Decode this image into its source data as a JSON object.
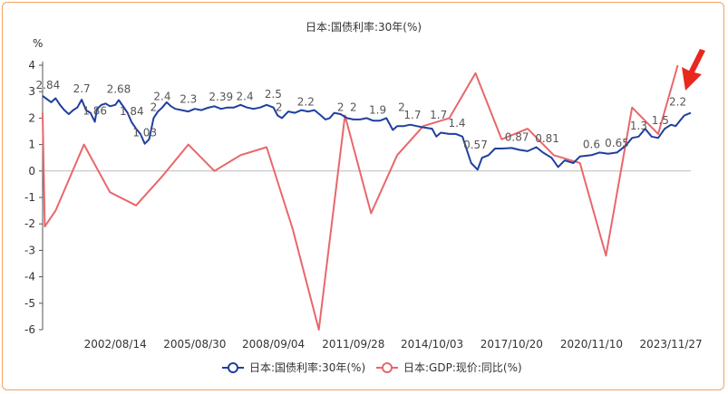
{
  "chart_data": {
    "type": "line",
    "title": "日本:国债利率:30年(%)",
    "ylabel": "%",
    "ylim": [
      -6,
      4
    ],
    "yticks": [
      "4",
      "3",
      "2",
      "1",
      "0",
      "-1",
      "-2",
      "-3",
      "-4",
      "-5",
      "-6"
    ],
    "x_range": [
      "1999-11-01",
      "2024-08-31"
    ],
    "xticks": [
      {
        "label": "2002/08/14",
        "date": "2002-08-14"
      },
      {
        "label": "2005/08/30",
        "date": "2005-08-30"
      },
      {
        "label": "2008/09/04",
        "date": "2008-09-04"
      },
      {
        "label": "2011/09/28",
        "date": "2011-09-28"
      },
      {
        "label": "2014/10/03",
        "date": "2014-10-03"
      },
      {
        "label": "2017/10/20",
        "date": "2017-10-20"
      },
      {
        "label": "2020/11/10",
        "date": "2020-11-10"
      },
      {
        "label": "2023/11/27",
        "date": "2023-11-27"
      }
    ],
    "grid": false,
    "legend_position": "bottom",
    "colors": {
      "bond": "#1f3f9e",
      "gdp": "#e8676b",
      "frame": "#f3a35c",
      "arrow": "#e8281e"
    },
    "series": [
      {
        "name": "日本:国债利率:30年(%)",
        "color": "#1f3f9e",
        "points": [
          [
            "1999-11-01",
            2.84
          ],
          [
            "2000-01-01",
            2.72
          ],
          [
            "2000-03-01",
            2.6
          ],
          [
            "2000-05-01",
            2.75
          ],
          [
            "2000-07-01",
            2.5
          ],
          [
            "2000-09-01",
            2.3
          ],
          [
            "2000-11-01",
            2.15
          ],
          [
            "2001-01-01",
            2.3
          ],
          [
            "2001-03-01",
            2.4
          ],
          [
            "2001-05-01",
            2.7
          ],
          [
            "2001-07-01",
            2.3
          ],
          [
            "2001-09-01",
            2.2
          ],
          [
            "2001-11-01",
            1.86
          ],
          [
            "2001-12-01",
            2.35
          ],
          [
            "2002-02-01",
            2.5
          ],
          [
            "2002-04-01",
            2.55
          ],
          [
            "2002-06-01",
            2.45
          ],
          [
            "2002-08-14",
            2.5
          ],
          [
            "2002-10-01",
            2.68
          ],
          [
            "2002-12-01",
            2.45
          ],
          [
            "2003-02-01",
            2.2
          ],
          [
            "2003-04-01",
            1.84
          ],
          [
            "2003-06-01",
            1.6
          ],
          [
            "2003-08-01",
            1.4
          ],
          [
            "2003-10-01",
            1.03
          ],
          [
            "2003-12-01",
            1.2
          ],
          [
            "2004-02-01",
            2.0
          ],
          [
            "2004-04-01",
            2.25
          ],
          [
            "2004-06-01",
            2.4
          ],
          [
            "2004-08-01",
            2.6
          ],
          [
            "2004-10-01",
            2.45
          ],
          [
            "2004-12-01",
            2.35
          ],
          [
            "2005-03-01",
            2.3
          ],
          [
            "2005-06-01",
            2.25
          ],
          [
            "2005-08-30",
            2.35
          ],
          [
            "2005-12-01",
            2.3
          ],
          [
            "2006-03-01",
            2.39
          ],
          [
            "2006-06-01",
            2.45
          ],
          [
            "2006-09-01",
            2.35
          ],
          [
            "2006-12-01",
            2.4
          ],
          [
            "2007-03-01",
            2.4
          ],
          [
            "2007-06-01",
            2.5
          ],
          [
            "2007-09-01",
            2.4
          ],
          [
            "2007-12-01",
            2.35
          ],
          [
            "2008-03-01",
            2.4
          ],
          [
            "2008-06-01",
            2.5
          ],
          [
            "2008-09-04",
            2.4
          ],
          [
            "2008-11-01",
            2.1
          ],
          [
            "2009-01-01",
            2.0
          ],
          [
            "2009-04-01",
            2.25
          ],
          [
            "2009-07-01",
            2.2
          ],
          [
            "2009-10-01",
            2.3
          ],
          [
            "2010-01-01",
            2.25
          ],
          [
            "2010-04-01",
            2.3
          ],
          [
            "2010-07-01",
            2.1
          ],
          [
            "2010-09-01",
            1.95
          ],
          [
            "2010-11-01",
            2.0
          ],
          [
            "2011-01-01",
            2.2
          ],
          [
            "2011-04-01",
            2.15
          ],
          [
            "2011-07-01",
            2.0
          ],
          [
            "2011-09-28",
            1.95
          ],
          [
            "2012-01-01",
            1.95
          ],
          [
            "2012-04-01",
            2.0
          ],
          [
            "2012-07-01",
            1.9
          ],
          [
            "2012-10-01",
            1.9
          ],
          [
            "2013-01-01",
            2.0
          ],
          [
            "2013-04-01",
            1.55
          ],
          [
            "2013-06-01",
            1.7
          ],
          [
            "2013-09-01",
            1.7
          ],
          [
            "2013-12-01",
            1.75
          ],
          [
            "2014-03-01",
            1.7
          ],
          [
            "2014-06-01",
            1.65
          ],
          [
            "2014-10-03",
            1.6
          ],
          [
            "2014-12-01",
            1.3
          ],
          [
            "2015-02-01",
            1.45
          ],
          [
            "2015-06-01",
            1.4
          ],
          [
            "2015-09-01",
            1.4
          ],
          [
            "2015-12-01",
            1.3
          ],
          [
            "2016-02-01",
            0.8
          ],
          [
            "2016-04-01",
            0.3
          ],
          [
            "2016-07-01",
            0.05
          ],
          [
            "2016-09-01",
            0.5
          ],
          [
            "2016-12-01",
            0.6
          ],
          [
            "2017-03-01",
            0.85
          ],
          [
            "2017-06-01",
            0.85
          ],
          [
            "2017-10-20",
            0.87
          ],
          [
            "2018-02-01",
            0.8
          ],
          [
            "2018-06-01",
            0.75
          ],
          [
            "2018-10-01",
            0.9
          ],
          [
            "2019-01-01",
            0.7
          ],
          [
            "2019-05-01",
            0.5
          ],
          [
            "2019-08-01",
            0.15
          ],
          [
            "2019-11-01",
            0.4
          ],
          [
            "2020-03-01",
            0.3
          ],
          [
            "2020-06-01",
            0.55
          ],
          [
            "2020-11-10",
            0.6
          ],
          [
            "2021-03-01",
            0.7
          ],
          [
            "2021-07-01",
            0.65
          ],
          [
            "2021-11-01",
            0.7
          ],
          [
            "2022-03-01",
            0.95
          ],
          [
            "2022-06-01",
            1.25
          ],
          [
            "2022-09-01",
            1.3
          ],
          [
            "2022-12-01",
            1.6
          ],
          [
            "2023-03-01",
            1.3
          ],
          [
            "2023-06-01",
            1.25
          ],
          [
            "2023-09-01",
            1.6
          ],
          [
            "2023-11-27",
            1.75
          ],
          [
            "2024-02-01",
            1.7
          ],
          [
            "2024-04-01",
            1.9
          ],
          [
            "2024-06-01",
            2.1
          ],
          [
            "2024-08-31",
            2.2
          ]
        ]
      },
      {
        "name": "日本:GDP:现价:同比(%)",
        "color": "#e8676b",
        "points": [
          [
            "1999-11-01",
            2.2
          ],
          [
            "1999-12-01",
            -2.1
          ],
          [
            "2000-05-01",
            -1.5
          ],
          [
            "2001-06-01",
            1.0
          ],
          [
            "2002-06-01",
            -0.8
          ],
          [
            "2003-06-01",
            -1.3
          ],
          [
            "2004-06-01",
            -0.2
          ],
          [
            "2005-06-01",
            1.0
          ],
          [
            "2006-06-01",
            0.0
          ],
          [
            "2007-06-01",
            0.6
          ],
          [
            "2008-06-01",
            0.9
          ],
          [
            "2009-06-01",
            -2.2
          ],
          [
            "2010-06-01",
            -6.0
          ],
          [
            "2011-06-01",
            2.1
          ],
          [
            "2012-06-01",
            -1.6
          ],
          [
            "2013-06-01",
            0.6
          ],
          [
            "2014-06-01",
            1.7
          ],
          [
            "2015-06-01",
            2.0
          ],
          [
            "2016-06-01",
            3.7
          ],
          [
            "2017-06-01",
            1.2
          ],
          [
            "2018-06-01",
            1.6
          ],
          [
            "2019-06-01",
            0.6
          ],
          [
            "2020-06-01",
            0.3
          ],
          [
            "2021-06-01",
            -3.2
          ],
          [
            "2022-06-01",
            2.4
          ],
          [
            "2023-06-01",
            1.4
          ],
          [
            "2024-03-01",
            4.0
          ]
        ]
      }
    ],
    "data_labels": [
      {
        "text": "2.84",
        "date": "2000-01-15",
        "y": 2.84
      },
      {
        "text": "2.7",
        "date": "2001-05-01",
        "y": 2.7
      },
      {
        "text": "1.86",
        "date": "2001-11-01",
        "y": 1.86
      },
      {
        "text": "2.68",
        "date": "2002-10-01",
        "y": 2.68
      },
      {
        "text": "1.84",
        "date": "2003-04-01",
        "y": 1.84
      },
      {
        "text": "1.03",
        "date": "2003-10-01",
        "y": 1.03
      },
      {
        "text": "2",
        "date": "2004-02-01",
        "y": 2.0
      },
      {
        "text": "2.4",
        "date": "2004-06-01",
        "y": 2.4
      },
      {
        "text": "2.3",
        "date": "2005-06-01",
        "y": 2.3
      },
      {
        "text": "2.39",
        "date": "2006-09-01",
        "y": 2.39
      },
      {
        "text": "2.4",
        "date": "2007-08-01",
        "y": 2.4
      },
      {
        "text": "2.5",
        "date": "2008-09-01",
        "y": 2.5
      },
      {
        "text": "2",
        "date": "2008-11-20",
        "y": 2.0
      },
      {
        "text": "2.2",
        "date": "2009-12-01",
        "y": 2.2
      },
      {
        "text": "2",
        "date": "2011-04-01",
        "y": 2.0
      },
      {
        "text": "2",
        "date": "2011-09-28",
        "y": 2.0
      },
      {
        "text": "1.9",
        "date": "2012-09-01",
        "y": 1.9
      },
      {
        "text": "2",
        "date": "2013-08-01",
        "y": 2.0
      },
      {
        "text": "1.7",
        "date": "2014-01-01",
        "y": 1.7
      },
      {
        "text": "1.7",
        "date": "2015-01-01",
        "y": 1.7
      },
      {
        "text": "1.4",
        "date": "2015-09-15",
        "y": 1.4
      },
      {
        "text": "0.57",
        "date": "2016-06-01",
        "y": 0.57
      },
      {
        "text": "0.87",
        "date": "2018-01-01",
        "y": 0.87
      },
      {
        "text": "0.81",
        "date": "2019-03-01",
        "y": 0.81
      },
      {
        "text": "0.6",
        "date": "2020-11-10",
        "y": 0.6
      },
      {
        "text": "0.65",
        "date": "2021-11-01",
        "y": 0.65
      },
      {
        "text": "1.3",
        "date": "2022-09-01",
        "y": 1.3
      },
      {
        "text": "1.5",
        "date": "2023-07-01",
        "y": 1.5
      },
      {
        "text": "2.2",
        "date": "2024-03-01",
        "y": 2.2
      }
    ]
  }
}
